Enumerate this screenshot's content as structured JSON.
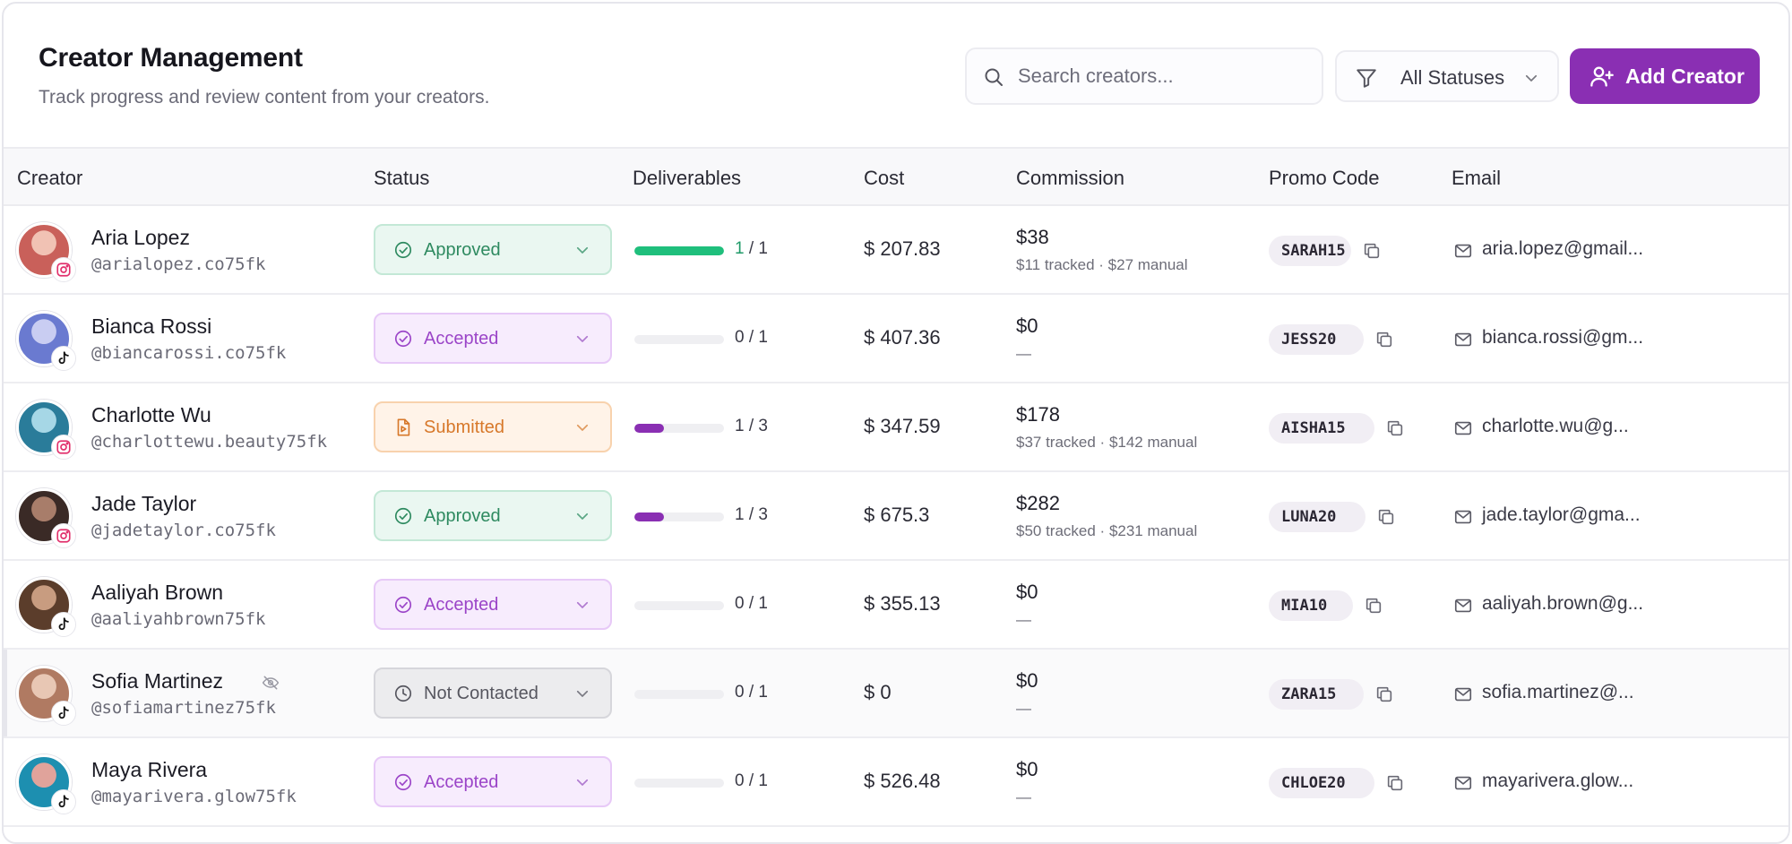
{
  "header": {
    "title": "Creator Management",
    "subtitle": "Track progress and review content from your creators.",
    "search_placeholder": "Search creators...",
    "filter_label": "All Statuses",
    "add_button_label": "Add Creator"
  },
  "columns": [
    "Creator",
    "Status",
    "Deliverables",
    "Cost",
    "Commission",
    "Promo Code",
    "Email"
  ],
  "colors": {
    "accent": "#8a2fb3",
    "approved": "#2e8a60",
    "accepted": "#9b45c8",
    "submitted": "#d7782a",
    "not_contacted": "#56565f",
    "progress_complete": "#1fbf7c",
    "progress_partial": "#8a2fb3",
    "instagram": "#e1306c"
  },
  "rows": [
    {
      "name": "Aria Lopez",
      "handle": "@arialopez.co75fk",
      "platform": "instagram-icon",
      "status": "Approved",
      "status_icon": "check-circle-icon",
      "deliverables": "1 / 1",
      "progress": 1.0,
      "cost": "$ 207.83",
      "commission": "$38",
      "commission_detail": "$11 tracked · $27 manual",
      "promo": "SARAH15",
      "email": "aria.lopez@gmail...",
      "hidden": false
    },
    {
      "name": "Bianca Rossi",
      "handle": "@biancarossi.co75fk",
      "platform": "tiktok-icon",
      "status": "Accepted",
      "status_icon": "check-circle-icon",
      "deliverables": "0 / 1",
      "progress": 0,
      "cost": "$ 407.36",
      "commission": "$0",
      "commission_detail": "—",
      "promo": "JESS20",
      "email": "bianca.rossi@gm...",
      "hidden": false
    },
    {
      "name": "Charlotte Wu",
      "handle": "@charlottewu.beauty75fk",
      "platform": "instagram-icon",
      "status": "Submitted",
      "status_icon": "file-play-icon",
      "deliverables": "1 / 3",
      "progress": 0.33,
      "cost": "$ 347.59",
      "commission": "$178",
      "commission_detail": "$37 tracked · $142 manual",
      "promo": "AISHA15",
      "email": "charlotte.wu@g...",
      "hidden": false
    },
    {
      "name": "Jade Taylor",
      "handle": "@jadetaylor.co75fk",
      "platform": "instagram-icon",
      "status": "Approved",
      "status_icon": "check-circle-icon",
      "deliverables": "1 / 3",
      "progress": 0.33,
      "cost": "$ 675.3",
      "commission": "$282",
      "commission_detail": "$50 tracked · $231 manual",
      "promo": "LUNA20",
      "email": "jade.taylor@gma...",
      "hidden": false
    },
    {
      "name": "Aaliyah Brown",
      "handle": "@aaliyahbrown75fk",
      "platform": "tiktok-icon",
      "status": "Accepted",
      "status_icon": "check-circle-icon",
      "deliverables": "0 / 1",
      "progress": 0,
      "cost": "$ 355.13",
      "commission": "$0",
      "commission_detail": "—",
      "promo": "MIA10",
      "email": "aaliyah.brown@g...",
      "hidden": false
    },
    {
      "name": "Sofia Martinez",
      "handle": "@sofiamartinez75fk",
      "platform": "tiktok-icon",
      "status": "Not Contacted",
      "status_icon": "clock-icon",
      "deliverables": "0 / 1",
      "progress": 0,
      "cost": "$ 0",
      "commission": "$0",
      "commission_detail": "—",
      "promo": "ZARA15",
      "email": "sofia.martinez@...",
      "hidden": true
    },
    {
      "name": "Maya Rivera",
      "handle": "@mayarivera.glow75fk",
      "platform": "tiktok-icon",
      "status": "Accepted",
      "status_icon": "check-circle-icon",
      "deliverables": "0 / 1",
      "progress": 0,
      "cost": "$ 526.48",
      "commission": "$0",
      "commission_detail": "—",
      "promo": "CHLOE20",
      "email": "mayarivera.glow...",
      "hidden": false
    }
  ]
}
